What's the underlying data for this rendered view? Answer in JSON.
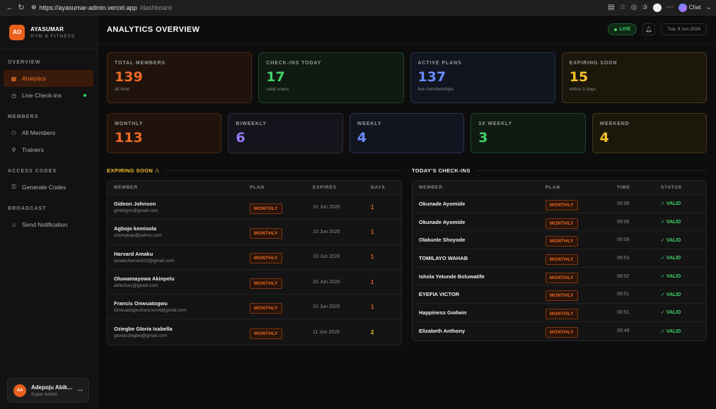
{
  "browser": {
    "url_host": "https://ayasumar-admin.vercel.app",
    "url_path": "/dashboard",
    "chat_label": "Chat"
  },
  "brand": {
    "logo": "AO",
    "name": "AYASUMAR",
    "sub": "GYM & FITNESS"
  },
  "sidebar": {
    "sections": [
      {
        "title": "OVERVIEW",
        "items": [
          {
            "label": "Analytics",
            "icon": "grid-icon",
            "active": true
          },
          {
            "label": "Live Check-ins",
            "icon": "clock-icon"
          }
        ]
      },
      {
        "title": "MEMBERS",
        "items": [
          {
            "label": "All Members",
            "icon": "users-icon"
          },
          {
            "label": "Trainers",
            "icon": "trainer-icon"
          }
        ]
      },
      {
        "title": "ACCESS CODES",
        "items": [
          {
            "label": "Generate Codes",
            "icon": "key-icon"
          }
        ]
      },
      {
        "title": "BROADCAST",
        "items": [
          {
            "label": "Send Notification",
            "icon": "bell-icon"
          }
        ]
      }
    ],
    "user": {
      "initials": "AA",
      "name": "Adepoju Abik...",
      "role": "Super Admin"
    }
  },
  "header": {
    "title": "ANALYTICS OVERVIEW",
    "live": "LIVE",
    "date": "Tue, 9 Jun 2026"
  },
  "stats_top": [
    {
      "label": "TOTAL MEMBERS",
      "value": "139",
      "sub": "all time",
      "color": "#f06a26"
    },
    {
      "label": "CHECK-INS TODAY",
      "value": "17",
      "sub": "valid scans",
      "color": "#42d36a"
    },
    {
      "label": "ACTIVE PLANS",
      "value": "137",
      "sub": "live memberships",
      "color": "#6a8cff"
    },
    {
      "label": "EXPIRING SOON",
      "value": "15",
      "sub": "within 3 days",
      "color": "#f5c02a"
    }
  ],
  "stats_plans": [
    {
      "label": "MONTHLY",
      "value": "113"
    },
    {
      "label": "BIWEEKLY",
      "value": "6"
    },
    {
      "label": "WEEKLY",
      "value": "4"
    },
    {
      "label": "3X WEEKLY",
      "value": "3"
    },
    {
      "label": "WEEKEND",
      "value": "4"
    }
  ],
  "expiring": {
    "title": "EXPIRING SOON ⚠",
    "columns": [
      "MEMBER",
      "PLAN",
      "EXPIRES",
      "DAYS"
    ],
    "rows": [
      {
        "name": "Gideon Johnson",
        "email": "ghiddyjnr@gmail.com",
        "plan": "MONTHLY",
        "expires": "10 Jun 2026",
        "days": "1"
      },
      {
        "name": "Agbojo kemisola",
        "email": "chemykay@yahoo.com",
        "plan": "MONTHLY",
        "expires": "10 Jun 2026",
        "days": "1"
      },
      {
        "name": "Harvard Amaku",
        "email": "amakuharvard23@gmail.com",
        "plan": "MONTHLY",
        "expires": "10 Jun 2026",
        "days": "1"
      },
      {
        "name": "Oluwamayowa Akinpelu",
        "email": "airlesfury@gmail.com",
        "plan": "MONTHLY",
        "expires": "10 Jun 2026",
        "days": "1"
      },
      {
        "name": "Francis Onwuatogwu",
        "email": "Onwuatogwufrancium4@gmail.com",
        "plan": "MONTHLY",
        "expires": "10 Jun 2026",
        "days": "1"
      },
      {
        "name": "Oziegbe Gloria Isabella",
        "email": "gloriaoziegbe@gmail.com",
        "plan": "MONTHLY",
        "expires": "11 Jun 2026",
        "days": "2"
      }
    ]
  },
  "checkins": {
    "title": "TODAY'S CHECK-INS",
    "columns": [
      "MEMBER",
      "PLAN",
      "TIME",
      "STATUS"
    ],
    "rows": [
      {
        "name": "Okunade Ayomide",
        "plan": "MONTHLY",
        "time": "09:06",
        "status": "✓ VALID"
      },
      {
        "name": "Okunade Ayomide",
        "plan": "MONTHLY",
        "time": "09:06",
        "status": "✓ VALID"
      },
      {
        "name": "Olakunle Shoyode",
        "plan": "MONTHLY",
        "time": "09:06",
        "status": "✓ VALID"
      },
      {
        "name": "TOMILAYO WAHAB",
        "plan": "MONTHLY",
        "time": "08:53",
        "status": "✓ VALID"
      },
      {
        "name": "Ishola Yetunde Boluwatife",
        "plan": "MONTHLY",
        "time": "08:52",
        "status": "✓ VALID"
      },
      {
        "name": "EYEFIA VICTOR",
        "plan": "MONTHLY",
        "time": "08:51",
        "status": "✓ VALID"
      },
      {
        "name": "Happiness Godwin",
        "plan": "MONTHLY",
        "time": "08:51",
        "status": "✓ VALID"
      },
      {
        "name": "Elizabeth Anthony",
        "plan": "MONTHLY",
        "time": "08:48",
        "status": "✓ VALID"
      }
    ]
  }
}
